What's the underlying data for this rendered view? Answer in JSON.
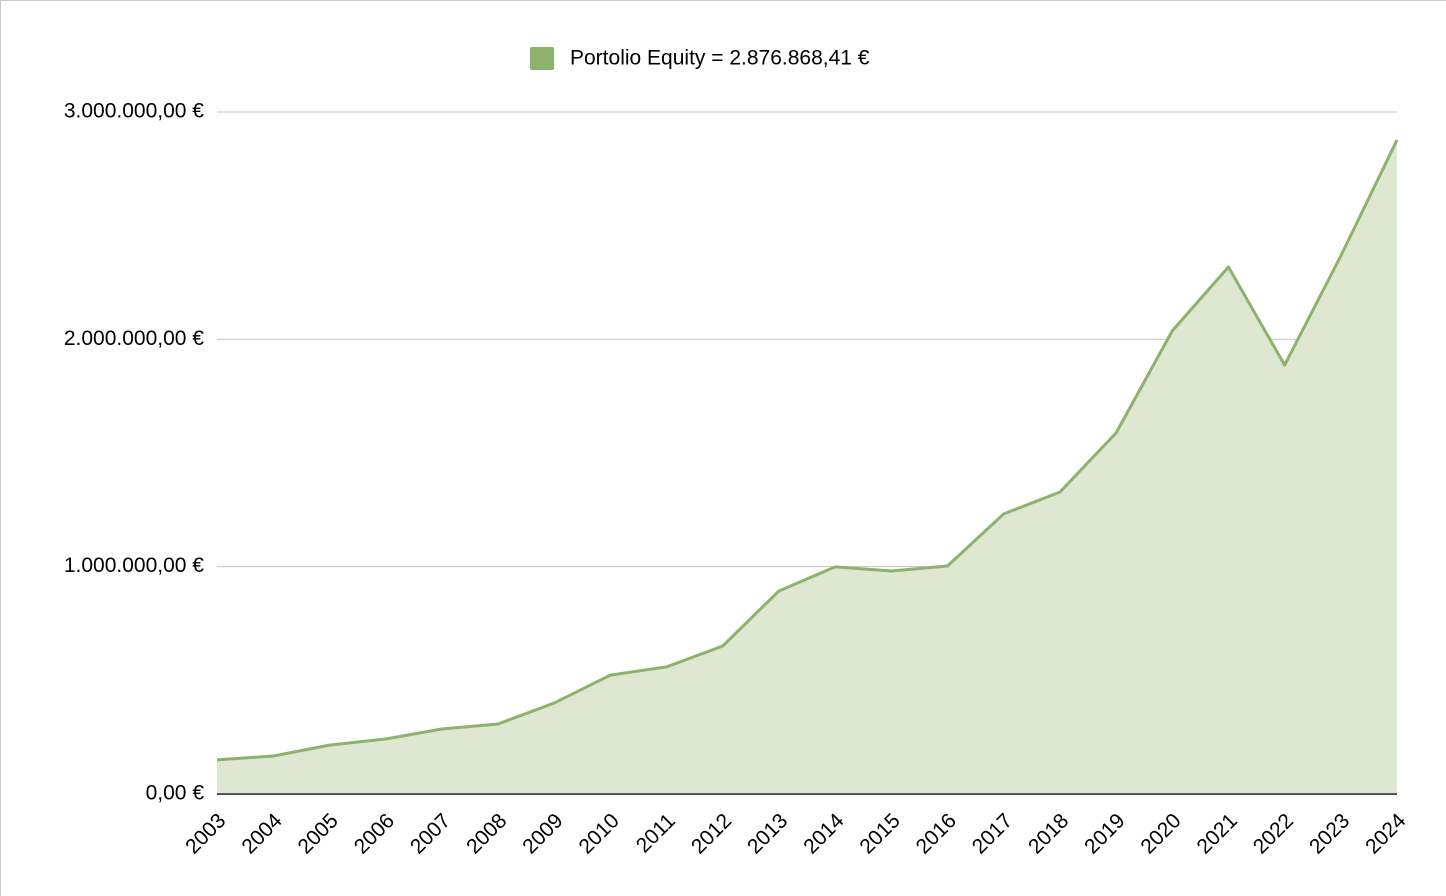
{
  "chart_data": {
    "type": "area",
    "categories": [
      "2003",
      "2004",
      "2005",
      "2006",
      "2007",
      "2008",
      "2009",
      "2010",
      "2011",
      "2012",
      "2013",
      "2014",
      "2015",
      "2016",
      "2017",
      "2018",
      "2019",
      "2020",
      "2021",
      "2022",
      "2023",
      "2024"
    ],
    "series": [
      {
        "name": "Portolio Equity = 2.876.868,41 €",
        "color": "#8db26c",
        "fill": "#dde7d1",
        "values": [
          150000,
          167000,
          215000,
          242000,
          286000,
          308000,
          400000,
          523000,
          559000,
          651000,
          893000,
          999000,
          981000,
          1003000,
          1232000,
          1328000,
          1588000,
          2037000,
          2318000,
          1887000,
          2367000,
          2876868.41
        ]
      }
    ],
    "ylim": [
      0,
      3000000
    ],
    "yticks": [
      {
        "value": 0,
        "label": "0,00 €"
      },
      {
        "value": 1000000,
        "label": "1.000.000,00 €"
      },
      {
        "value": 2000000,
        "label": "2.000.000,00 €"
      },
      {
        "value": 3000000,
        "label": "3.000.000,00 €"
      }
    ],
    "grid": true,
    "legend": "top"
  }
}
